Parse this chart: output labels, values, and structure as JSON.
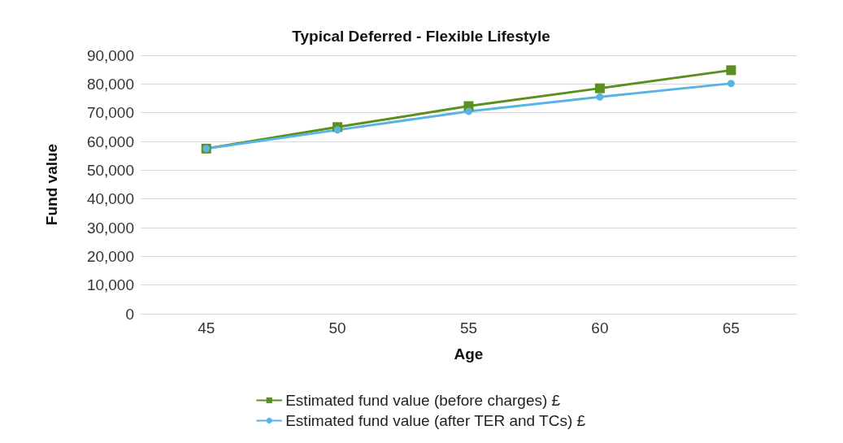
{
  "chart_data": {
    "type": "line",
    "title": "Typical Deferred - Flexible Lifestyle",
    "xlabel": "Age",
    "ylabel": "Fund value",
    "categories": [
      "45",
      "50",
      "55",
      "60",
      "65"
    ],
    "series": [
      {
        "name": "Estimated fund value (before charges) £",
        "color": "#5b8f1e",
        "marker": "square",
        "values": [
          57500,
          65000,
          72300,
          78500,
          84800
        ]
      },
      {
        "name": "Estimated fund value (after TER and TCs) £",
        "color": "#5ab4e3",
        "marker": "circle",
        "values": [
          57500,
          64000,
          70500,
          75500,
          80200
        ]
      }
    ],
    "ylim": [
      0,
      90000
    ],
    "yticks": [
      0,
      {
        "value": 10000,
        "label": "10,000"
      },
      {
        "value": 20000,
        "label": "20,000"
      },
      {
        "value": 30000,
        "label": "30,000"
      },
      {
        "value": 40000,
        "label": "40,000"
      },
      {
        "value": 50000,
        "label": "50,000"
      },
      {
        "value": 60000,
        "label": "60,000"
      },
      {
        "value": 70000,
        "label": "70,000"
      },
      {
        "value": 80000,
        "label": "80,000"
      },
      {
        "value": 90000,
        "label": "90,000"
      }
    ],
    "grid": "y",
    "legend": "bottom"
  }
}
